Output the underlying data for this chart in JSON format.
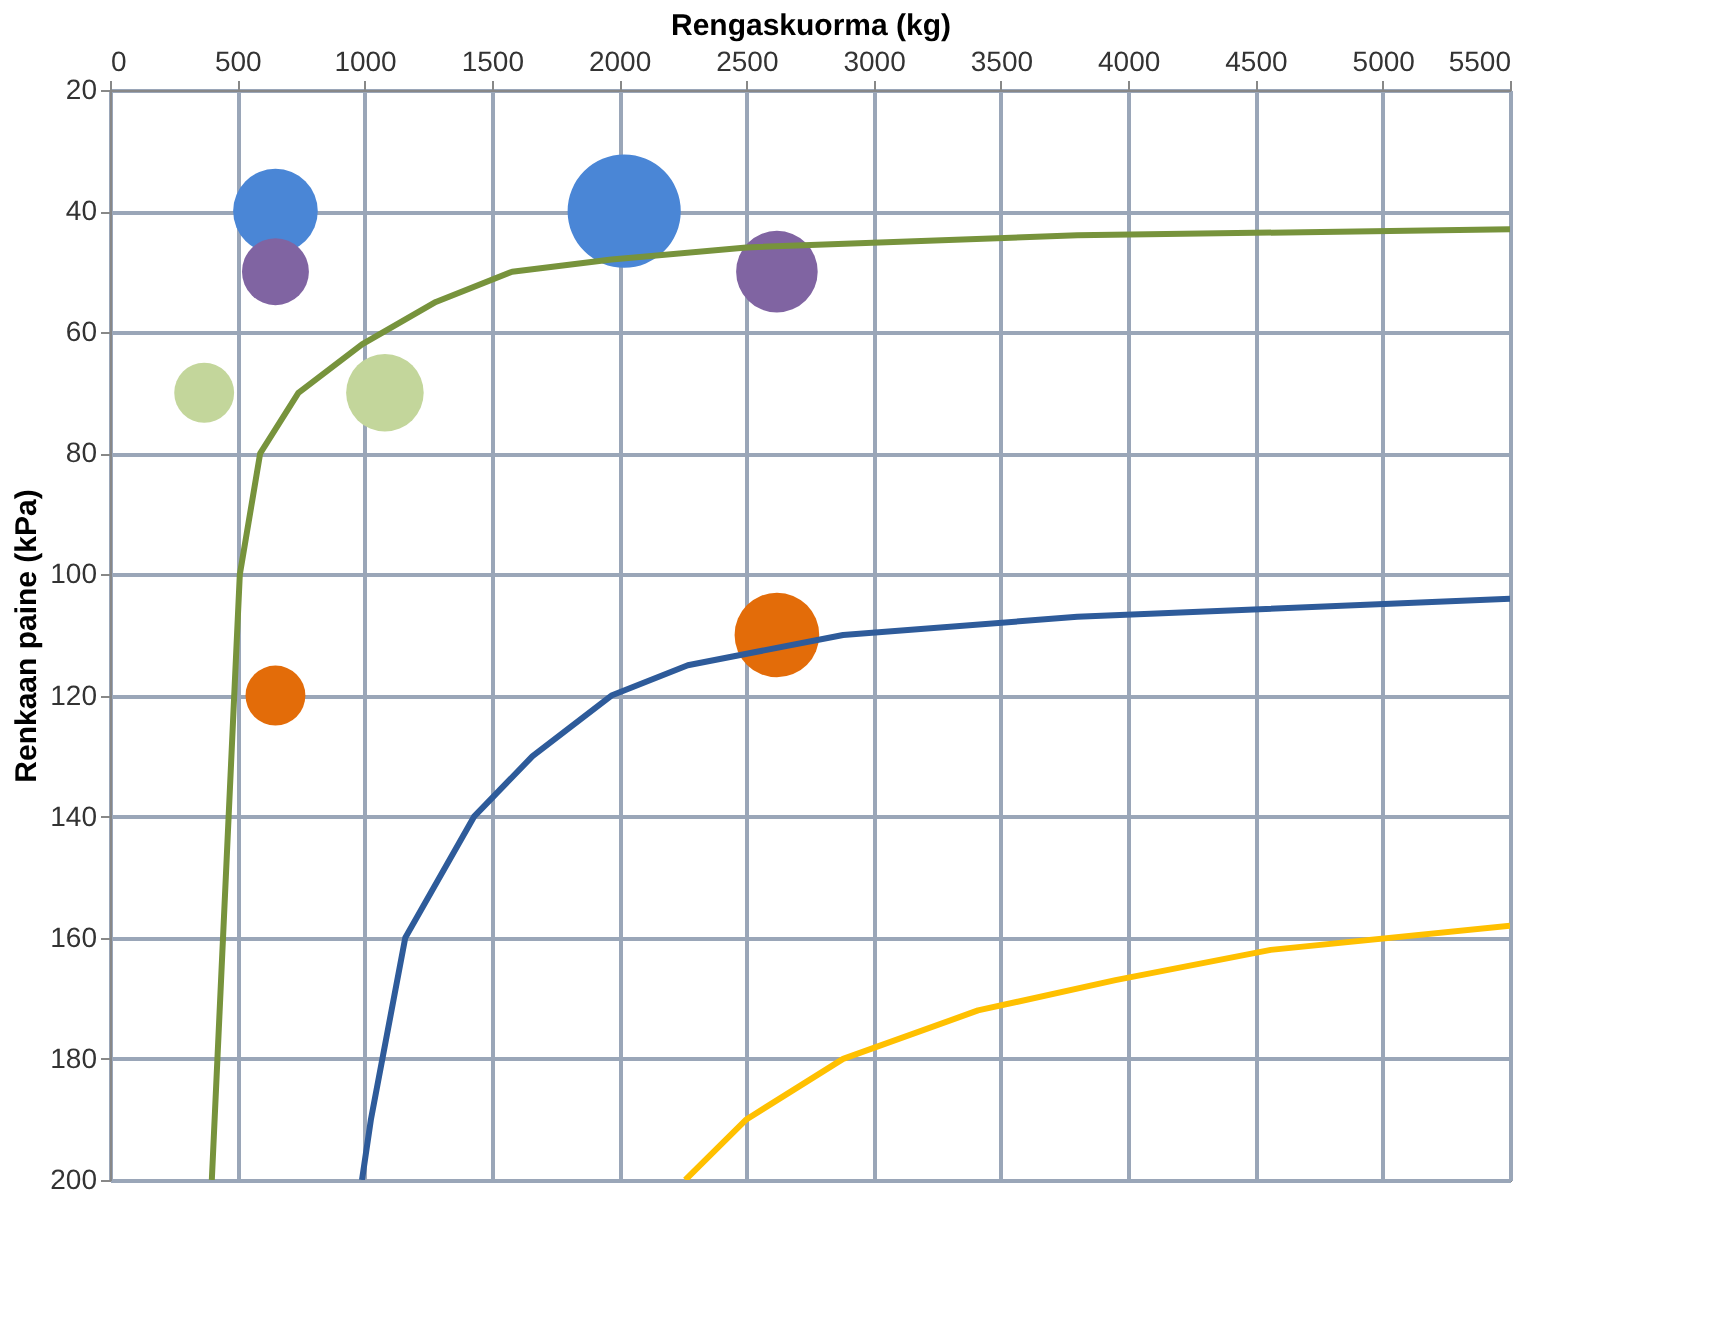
{
  "chart_data": {
    "type": "bubble",
    "xlabel": "Rengaskuorma (kg)",
    "ylabel": "Renkaan paine  (kPa)",
    "xlim": [
      0,
      5500
    ],
    "xticks": [
      0,
      500,
      1000,
      1500,
      2000,
      2500,
      3000,
      3500,
      4000,
      4500,
      5000,
      5500
    ],
    "ylim": [
      200,
      20
    ],
    "yticks": [
      20,
      40,
      60,
      80,
      100,
      120,
      140,
      160,
      180,
      200
    ],
    "grid": true,
    "series": [
      {
        "type": "line",
        "color": "#77933c",
        "x": [
          400,
          510,
          590,
          740,
          990,
          1280,
          1580,
          1970,
          2500,
          3800,
          5500
        ],
        "values": [
          200,
          100,
          80,
          70,
          62,
          55,
          50,
          48,
          46,
          44,
          43
        ]
      },
      {
        "type": "line",
        "color": "#2e5b9a",
        "x": [
          990,
          1025,
          1160,
          1430,
          1660,
          1970,
          2270,
          2880,
          3800,
          5500
        ],
        "values": [
          200,
          190,
          160,
          140,
          130,
          120,
          115,
          110,
          107,
          104
        ]
      },
      {
        "type": "line",
        "color": "#ffc000",
        "x": [
          2260,
          2500,
          2880,
          3410,
          3950,
          4560,
          5500
        ],
        "values": [
          200,
          190,
          180,
          172,
          167,
          162,
          158
        ]
      },
      {
        "color": "#4a86d6",
        "x": [
          650,
          2020
        ],
        "values": [
          40,
          40
        ],
        "sizes": [
          0.56,
          1
        ]
      },
      {
        "color": "#8064a2",
        "x": [
          650,
          2620
        ],
        "values": [
          50,
          50
        ],
        "sizes": [
          0.35,
          0.52
        ]
      },
      {
        "color": "#c3d69b",
        "x": [
          370,
          1080
        ],
        "values": [
          70,
          70
        ],
        "sizes": [
          0.28,
          0.47
        ]
      },
      {
        "color": "#e36c09",
        "x": [
          650,
          2620
        ],
        "values": [
          120,
          110
        ],
        "sizes": [
          0.28,
          0.56
        ]
      }
    ]
  }
}
